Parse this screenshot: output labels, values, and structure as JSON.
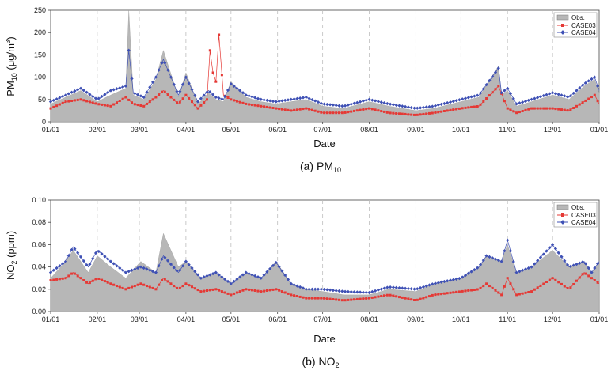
{
  "chart_data": [
    {
      "type": "area",
      "panel_caption": "(a) PM",
      "panel_caption_sub": "10",
      "xlabel": "Date",
      "ylabel": "PM",
      "ylabel_sub": "10",
      "ylabel_unit": " (μg/m",
      "ylabel_sup": "3",
      "ylabel_close": ")",
      "ylim": [
        0,
        250
      ],
      "yticks": [
        "0",
        "50",
        "100",
        "150",
        "200",
        "250"
      ],
      "ytick_values": [
        0,
        50,
        100,
        150,
        200,
        250
      ],
      "xticks": [
        "01/01",
        "02/01",
        "03/01",
        "04/01",
        "05/01",
        "06/01",
        "07/01",
        "08/01",
        "09/01",
        "10/01",
        "11/01",
        "12/01",
        "01/01"
      ],
      "xtick_days": [
        0,
        31,
        59,
        90,
        120,
        151,
        181,
        212,
        243,
        273,
        304,
        334,
        365
      ],
      "legend_position": "top-right",
      "grid": "dashed vertical lines at month starts",
      "series": [
        {
          "name": "Obs.",
          "style": "filled area",
          "color": "#b7b7b7",
          "days": [
            0,
            10,
            20,
            31,
            40,
            50,
            52,
            55,
            62,
            70,
            75,
            85,
            90,
            98,
            105,
            110,
            115,
            120,
            130,
            140,
            150,
            160,
            170,
            181,
            195,
            212,
            225,
            243,
            255,
            273,
            285,
            298,
            300,
            304,
            310,
            320,
            334,
            345,
            355,
            362,
            365
          ],
          "values": [
            40,
            55,
            70,
            45,
            60,
            75,
            250,
            60,
            50,
            95,
            160,
            55,
            110,
            40,
            65,
            50,
            45,
            90,
            55,
            45,
            40,
            45,
            50,
            35,
            30,
            45,
            35,
            25,
            30,
            45,
            55,
            125,
            60,
            70,
            35,
            45,
            60,
            50,
            80,
            95,
            65
          ]
        },
        {
          "name": "CASE03",
          "style": "line+square markers",
          "color": "#e53935",
          "days": [
            0,
            10,
            20,
            31,
            40,
            50,
            55,
            62,
            70,
            75,
            85,
            90,
            98,
            104,
            106,
            108,
            110,
            112,
            115,
            120,
            130,
            140,
            150,
            160,
            170,
            181,
            195,
            212,
            225,
            243,
            255,
            273,
            285,
            298,
            304,
            310,
            320,
            334,
            345,
            355,
            362,
            365
          ],
          "values": [
            30,
            45,
            50,
            40,
            35,
            55,
            40,
            35,
            55,
            70,
            40,
            60,
            30,
            50,
            160,
            110,
            90,
            195,
            60,
            50,
            40,
            35,
            30,
            25,
            30,
            20,
            20,
            30,
            20,
            15,
            20,
            30,
            35,
            80,
            30,
            20,
            30,
            30,
            25,
            45,
            60,
            40
          ]
        },
        {
          "name": "CASE04",
          "style": "line+diamond markers",
          "color": "#3f51b5",
          "days": [
            0,
            10,
            20,
            31,
            40,
            50,
            52,
            55,
            62,
            70,
            75,
            85,
            90,
            98,
            105,
            110,
            115,
            120,
            130,
            140,
            150,
            160,
            170,
            181,
            195,
            212,
            225,
            243,
            255,
            273,
            285,
            298,
            300,
            304,
            310,
            320,
            334,
            345,
            355,
            362,
            365
          ],
          "values": [
            45,
            60,
            75,
            50,
            70,
            80,
            160,
            65,
            55,
            100,
            140,
            60,
            100,
            45,
            70,
            55,
            50,
            85,
            60,
            50,
            45,
            50,
            55,
            40,
            35,
            50,
            40,
            30,
            35,
            50,
            60,
            120,
            65,
            75,
            40,
            50,
            65,
            55,
            85,
            100,
            70
          ]
        }
      ]
    },
    {
      "type": "area",
      "panel_caption": "(b) NO",
      "panel_caption_sub": "2",
      "xlabel": "Date",
      "ylabel": "NO",
      "ylabel_sub": "2",
      "ylabel_unit": " (ppm)",
      "ylim": [
        0,
        0.1
      ],
      "yticks": [
        "0.00",
        "0.02",
        "0.04",
        "0.06",
        "0.08",
        "0.10"
      ],
      "ytick_values": [
        0,
        0.02,
        0.04,
        0.06,
        0.08,
        0.1
      ],
      "xticks": [
        "01/01",
        "02/01",
        "03/01",
        "04/01",
        "05/01",
        "06/01",
        "07/01",
        "08/01",
        "09/01",
        "10/01",
        "11/01",
        "12/01",
        "01/01"
      ],
      "xtick_days": [
        0,
        31,
        59,
        90,
        120,
        151,
        181,
        212,
        243,
        273,
        304,
        334,
        365
      ],
      "legend_position": "top-right",
      "grid": "dashed vertical lines at month starts",
      "series": [
        {
          "name": "Obs.",
          "style": "filled area",
          "color": "#b7b7b7",
          "days": [
            0,
            10,
            15,
            25,
            31,
            40,
            50,
            60,
            70,
            75,
            85,
            90,
            100,
            110,
            120,
            130,
            140,
            150,
            160,
            170,
            181,
            195,
            212,
            225,
            243,
            255,
            273,
            285,
            290,
            300,
            304,
            310,
            320,
            334,
            345,
            355,
            360,
            365
          ],
          "values": [
            0.03,
            0.045,
            0.055,
            0.035,
            0.05,
            0.04,
            0.03,
            0.045,
            0.035,
            0.07,
            0.04,
            0.045,
            0.03,
            0.035,
            0.025,
            0.035,
            0.03,
            0.045,
            0.025,
            0.02,
            0.018,
            0.015,
            0.015,
            0.02,
            0.018,
            0.025,
            0.03,
            0.04,
            0.05,
            0.045,
            0.06,
            0.035,
            0.04,
            0.055,
            0.04,
            0.045,
            0.035,
            0.045
          ]
        },
        {
          "name": "CASE03",
          "style": "line+square markers",
          "color": "#e53935",
          "days": [
            0,
            10,
            15,
            25,
            31,
            40,
            50,
            60,
            70,
            75,
            85,
            90,
            100,
            110,
            120,
            130,
            140,
            150,
            160,
            170,
            181,
            195,
            212,
            225,
            243,
            255,
            273,
            285,
            290,
            300,
            304,
            310,
            320,
            334,
            345,
            355,
            360,
            365
          ],
          "values": [
            0.028,
            0.03,
            0.035,
            0.025,
            0.03,
            0.025,
            0.02,
            0.025,
            0.02,
            0.03,
            0.02,
            0.025,
            0.018,
            0.02,
            0.015,
            0.02,
            0.018,
            0.02,
            0.015,
            0.012,
            0.012,
            0.01,
            0.012,
            0.015,
            0.01,
            0.015,
            0.018,
            0.02,
            0.025,
            0.015,
            0.03,
            0.015,
            0.018,
            0.03,
            0.02,
            0.035,
            0.03,
            0.025
          ]
        },
        {
          "name": "CASE04",
          "style": "line+diamond markers",
          "color": "#3f51b5",
          "days": [
            0,
            10,
            15,
            25,
            31,
            40,
            50,
            60,
            70,
            75,
            85,
            90,
            100,
            110,
            120,
            130,
            140,
            150,
            160,
            170,
            181,
            195,
            212,
            225,
            243,
            255,
            273,
            285,
            290,
            300,
            304,
            310,
            320,
            334,
            345,
            355,
            360,
            365
          ],
          "values": [
            0.035,
            0.045,
            0.058,
            0.04,
            0.055,
            0.045,
            0.035,
            0.04,
            0.035,
            0.05,
            0.035,
            0.045,
            0.03,
            0.035,
            0.025,
            0.035,
            0.03,
            0.044,
            0.025,
            0.02,
            0.02,
            0.018,
            0.017,
            0.022,
            0.02,
            0.025,
            0.03,
            0.04,
            0.05,
            0.045,
            0.064,
            0.035,
            0.04,
            0.06,
            0.04,
            0.045,
            0.035,
            0.045
          ]
        }
      ]
    }
  ]
}
